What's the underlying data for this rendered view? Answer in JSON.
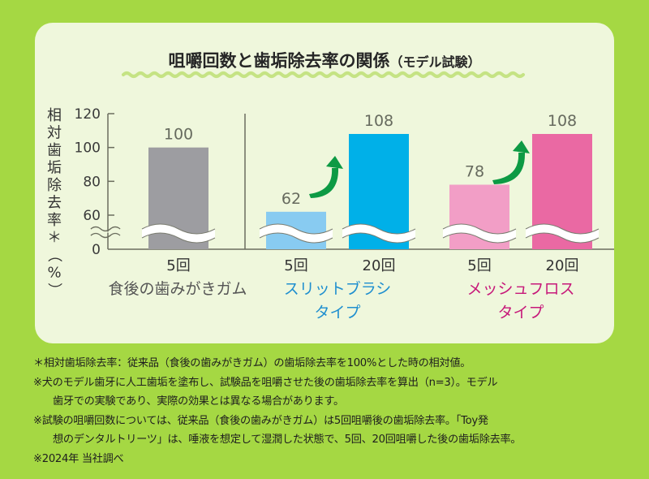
{
  "chart_data": {
    "type": "bar",
    "title": "咀嚼回数と歯垢除去率の関係",
    "title_suffix": "（モデル試験）",
    "ylabel": "相対歯垢除去率＊（%）",
    "ylim": [
      0,
      120
    ],
    "axis_break": [
      0,
      60
    ],
    "yticks": [
      0,
      60,
      80,
      100,
      120
    ],
    "grid": false,
    "groups": [
      {
        "name_lines": [
          "食後の歯みがきガム"
        ],
        "color": "#555555",
        "bars": [
          {
            "category": "5回",
            "value": 100,
            "color": "#9d9da1"
          }
        ]
      },
      {
        "name_lines": [
          "スリットブラシ",
          "タイプ"
        ],
        "color": "#1f8fcf",
        "bars": [
          {
            "category": "5回",
            "value": 62,
            "color": "#88cbf1"
          },
          {
            "category": "20回",
            "value": 108,
            "color": "#00b0e8"
          }
        ]
      },
      {
        "name_lines": [
          "メッシュフロス",
          "タイプ"
        ],
        "color": "#c7197a",
        "bars": [
          {
            "category": "5回",
            "value": 78,
            "color": "#f29ec6"
          },
          {
            "category": "20回",
            "value": 108,
            "color": "#ea69a3"
          }
        ]
      }
    ],
    "annotations": [
      "green-up-arrow 62→108",
      "green-up-arrow 78→108"
    ],
    "arrow_color": "#0d9a44"
  },
  "notes": [
    "＊相対歯垢除去率：従来品（食後の歯みがきガム）の歯垢除去率を100%とした時の相対値。",
    "※犬のモデル歯牙に人工歯垢を塗布し、試験品を咀嚼させた後の歯垢除去率を算出（n=3）。モデル",
    "歯牙での実験であり、実際の効果とは異なる場合があります。",
    "※試験の咀嚼回数については、従来品（食後の歯みがきガム）は5回咀嚼後の歯垢除去率。「Toy発",
    "想のデンタルトリーツ」は、唾液を想定して湿潤した状態で、5回、20回咀嚼した後の歯垢除去率。",
    "※2024年 当社調べ"
  ]
}
